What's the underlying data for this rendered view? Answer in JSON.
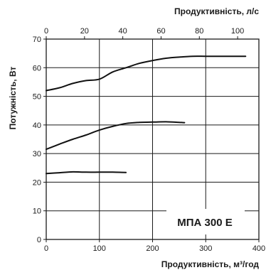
{
  "chart_data": {
    "type": "line",
    "x": {
      "label": "Продуктивність, м³/год",
      "range": [
        0,
        400
      ],
      "ticks": [
        "0",
        "100",
        "200",
        "300",
        "400"
      ]
    },
    "x2": {
      "label": "Продуктивність, л/с",
      "range": [
        0,
        111.1111
      ],
      "ticks": [
        "0",
        "20",
        "40",
        "60",
        "80",
        "100"
      ]
    },
    "y": {
      "label": "Потужність, Вт",
      "range": [
        0,
        70
      ],
      "ticks": [
        "0",
        "10",
        "20",
        "30",
        "40",
        "50",
        "60",
        "70"
      ]
    },
    "grid": true,
    "model_label": "МПА 300 Е",
    "series": [
      {
        "values": [
          [
            0,
            52
          ],
          [
            25,
            53
          ],
          [
            50,
            54.5
          ],
          [
            75,
            55.5
          ],
          [
            100,
            56
          ],
          [
            125,
            58.5
          ],
          [
            150,
            60
          ],
          [
            175,
            61.5
          ],
          [
            200,
            62.5
          ],
          [
            225,
            63.3
          ],
          [
            250,
            63.7
          ],
          [
            275,
            64
          ],
          [
            300,
            64
          ],
          [
            325,
            64
          ],
          [
            350,
            64
          ],
          [
            375,
            64
          ]
        ]
      },
      {
        "values": [
          [
            0,
            31.5
          ],
          [
            25,
            33.3
          ],
          [
            50,
            35
          ],
          [
            75,
            36.5
          ],
          [
            100,
            38.2
          ],
          [
            125,
            39.5
          ],
          [
            150,
            40.5
          ],
          [
            175,
            40.9
          ],
          [
            200,
            41
          ],
          [
            225,
            41.1
          ],
          [
            250,
            40.9
          ],
          [
            260,
            40.8
          ]
        ]
      },
      {
        "values": [
          [
            0,
            23
          ],
          [
            25,
            23.3
          ],
          [
            50,
            23.6
          ],
          [
            75,
            23.5
          ],
          [
            100,
            23.5
          ],
          [
            125,
            23.5
          ],
          [
            150,
            23.4
          ]
        ]
      }
    ]
  }
}
